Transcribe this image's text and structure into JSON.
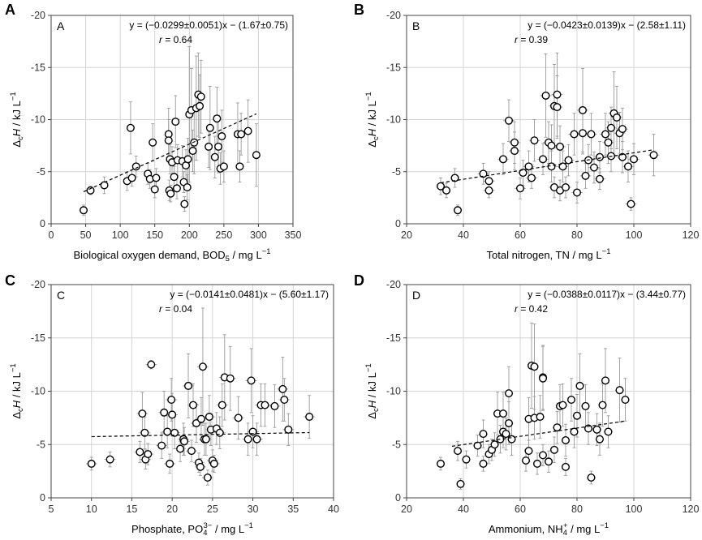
{
  "figure": {
    "y_axis_label": {
      "main": "Δ",
      "sub": "c",
      "italic": "H",
      "units": " / kJ L",
      "sup": "−1"
    }
  },
  "chart_data": [
    {
      "type": "scatter",
      "panel_letter": "A",
      "inner_label": "A",
      "equation": "y = (−0.0299±0.0051)x − (1.67±0.75)",
      "r_label": "r",
      "r_value": " = 0.64",
      "xlabel": {
        "text": "Biological oxygen demand, BOD",
        "sub": "5",
        "sup": "",
        "units": " / mg L",
        "units_sup": "−1"
      },
      "xlim": [
        0,
        350
      ],
      "xticks": [
        0,
        50,
        100,
        150,
        200,
        250,
        300,
        350
      ],
      "ylim": [
        0,
        -20
      ],
      "yticks": [
        0,
        -5,
        -10,
        -15,
        -20
      ],
      "ytick_labels": [
        "0",
        "-5",
        "-10",
        "-15",
        "-20"
      ],
      "fit": {
        "slope": -0.0299,
        "intercept": -1.67,
        "x_range": [
          47,
          297
        ]
      },
      "points": [
        [
          47,
          -1.3,
          0.5,
          4
        ],
        [
          57,
          -3.2,
          0.4,
          4
        ],
        [
          77,
          -3.7,
          0.8,
          4
        ],
        [
          110,
          -4.1,
          0.9,
          4
        ],
        [
          115,
          -9.2,
          2.5,
          4
        ],
        [
          117,
          -4.4,
          0.8,
          4
        ],
        [
          123,
          -5.5,
          1.0,
          4
        ],
        [
          140,
          -4.8,
          1.0,
          4
        ],
        [
          143,
          -4.3,
          0.9,
          4
        ],
        [
          147,
          -7.8,
          1.8,
          4
        ],
        [
          150,
          -3.3,
          0.8,
          4
        ],
        [
          152,
          -4.4,
          0.9,
          4
        ],
        [
          170,
          -8.6,
          2.5,
          4
        ],
        [
          170,
          -8.0,
          2.0,
          4
        ],
        [
          171,
          -3.2,
          1.0,
          4
        ],
        [
          172,
          -6.2,
          1.4,
          4
        ],
        [
          173,
          -2.9,
          0.8,
          4
        ],
        [
          175,
          -5.9,
          1.5,
          4
        ],
        [
          178,
          -4.5,
          1.0,
          4
        ],
        [
          180,
          -9.8,
          2.5,
          4
        ],
        [
          182,
          -3.4,
          1.0,
          4
        ],
        [
          183,
          -6.1,
          1.5,
          4
        ],
        [
          190,
          -6.0,
          1.5,
          4
        ],
        [
          192,
          -4.0,
          1.0,
          4
        ],
        [
          193,
          -1.9,
          0.7,
          4
        ],
        [
          195,
          -5.6,
          1.5,
          4
        ],
        [
          197,
          -3.5,
          1.2,
          4
        ],
        [
          198,
          -6.2,
          2.0,
          4
        ],
        [
          200,
          -10.5,
          6.5,
          4
        ],
        [
          203,
          -10.9,
          4.0,
          4
        ],
        [
          205,
          -7.0,
          2.0,
          4
        ],
        [
          207,
          -7.8,
          3.0,
          4
        ],
        [
          210,
          -11.1,
          5.0,
          4
        ],
        [
          213,
          -12.4,
          4.0,
          4
        ],
        [
          215,
          -11.3,
          3.0,
          4
        ],
        [
          217,
          -12.2,
          3.5,
          4
        ],
        [
          230,
          -9.2,
          4.0,
          4
        ],
        [
          237,
          -6.4,
          2.0,
          4
        ],
        [
          240,
          -10.1,
          3.0,
          4
        ],
        [
          242,
          -7.4,
          2.5,
          4
        ],
        [
          245,
          -5.3,
          1.5,
          4
        ],
        [
          247,
          -8.4,
          2.5,
          4
        ],
        [
          250,
          -5.5,
          1.5,
          4
        ],
        [
          270,
          -8.6,
          3.0,
          4
        ],
        [
          273,
          -5.5,
          1.5,
          4
        ],
        [
          275,
          -8.6,
          2.0,
          4
        ],
        [
          285,
          -8.9,
          3.0,
          4
        ],
        [
          297,
          -6.6,
          3.0,
          4
        ],
        [
          228,
          -7.4,
          2.0,
          4
        ]
      ]
    },
    {
      "type": "scatter",
      "panel_letter": "B",
      "inner_label": "B",
      "equation": "y = (−0.0423±0.0139)x − (2.58±1.11)",
      "r_label": "r",
      "r_value": " = 0.39",
      "xlabel": {
        "text": "Total nitrogen, TN",
        "sub": "",
        "sup": "",
        "units": " / mg L",
        "units_sup": "−1"
      },
      "xlim": [
        20,
        120
      ],
      "xticks": [
        20,
        40,
        60,
        80,
        100,
        120
      ],
      "ylim": [
        0,
        -20
      ],
      "yticks": [
        0,
        -5,
        -10,
        -15,
        -20
      ],
      "ytick_labels": [
        "0",
        "-5",
        "-10",
        "-15",
        "-20"
      ],
      "fit": {
        "slope": -0.0423,
        "intercept": -2.58,
        "x_range": [
          32,
          107
        ]
      },
      "points": [
        [
          32,
          -3.6,
          0.8,
          1.5
        ],
        [
          34,
          -3.2,
          0.7,
          1.5
        ],
        [
          37,
          -4.4,
          0.9,
          1.5
        ],
        [
          38,
          -1.3,
          0.5,
          1.5
        ],
        [
          47,
          -4.8,
          1.0,
          2
        ],
        [
          49,
          -4.1,
          0.9,
          2
        ],
        [
          49,
          -3.2,
          0.7,
          2
        ],
        [
          54,
          -6.2,
          1.5,
          2
        ],
        [
          56,
          -9.9,
          2.0,
          2
        ],
        [
          58,
          -7.8,
          2.0,
          2
        ],
        [
          58,
          -7.0,
          1.8,
          2
        ],
        [
          60,
          -3.4,
          1.0,
          2
        ],
        [
          61,
          -4.9,
          1.2,
          2
        ],
        [
          63,
          -5.5,
          1.5,
          2
        ],
        [
          64,
          -4.4,
          1.0,
          2
        ],
        [
          65,
          -8.0,
          2.0,
          2
        ],
        [
          68,
          -6.2,
          1.5,
          2
        ],
        [
          69,
          -12.3,
          4.0,
          2
        ],
        [
          70,
          -7.8,
          2.0,
          2
        ],
        [
          71,
          -7.5,
          2.0,
          2
        ],
        [
          71,
          -5.5,
          1.5,
          2
        ],
        [
          72,
          -11.3,
          4.0,
          2
        ],
        [
          72,
          -3.5,
          1.0,
          2
        ],
        [
          73,
          -12.4,
          4.0,
          2
        ],
        [
          73,
          -11.2,
          3.0,
          2
        ],
        [
          74,
          -7.4,
          2.0,
          2
        ],
        [
          74,
          -3.2,
          1.0,
          2
        ],
        [
          75,
          -5.5,
          1.5,
          2
        ],
        [
          76,
          -3.5,
          1.0,
          2
        ],
        [
          77,
          -6.1,
          1.5,
          2
        ],
        [
          79,
          -8.6,
          2.0,
          2
        ],
        [
          80,
          -3.0,
          1.0,
          2
        ],
        [
          82,
          -8.7,
          2.0,
          2
        ],
        [
          82,
          -10.9,
          4.0,
          2
        ],
        [
          83,
          -4.6,
          1.2,
          2
        ],
        [
          84,
          -6.1,
          1.5,
          2
        ],
        [
          85,
          -8.6,
          2.0,
          2
        ],
        [
          86,
          -5.4,
          1.5,
          2
        ],
        [
          88,
          -6.4,
          1.5,
          2
        ],
        [
          88,
          -4.3,
          1.0,
          2
        ],
        [
          90,
          -8.6,
          2.0,
          2
        ],
        [
          91,
          -7.8,
          2.0,
          2
        ],
        [
          92,
          -9.2,
          2.0,
          2
        ],
        [
          92,
          -6.5,
          1.5,
          2
        ],
        [
          93,
          -10.6,
          4.0,
          2
        ],
        [
          94,
          -10.2,
          3.0,
          2
        ],
        [
          95,
          -8.7,
          2.0,
          2
        ],
        [
          96,
          -9.1,
          2.0,
          2
        ],
        [
          96,
          -6.4,
          1.5,
          2
        ],
        [
          98,
          -5.5,
          1.5,
          2
        ],
        [
          99,
          -1.9,
          0.6,
          2
        ],
        [
          100,
          -6.2,
          1.5,
          2
        ],
        [
          107,
          -6.6,
          2.0,
          2
        ]
      ]
    },
    {
      "type": "scatter",
      "panel_letter": "C",
      "inner_label": "C",
      "equation": "y = (−0.0141±0.0481)x − (5.60±1.17)",
      "r_label": "r",
      "r_value": " = 0.04",
      "xlabel": {
        "text": "Phosphate, PO",
        "sub": "4",
        "sup": "3−",
        "units": " / mg L",
        "units_sup": "−1"
      },
      "xlim": [
        5,
        40
      ],
      "xticks": [
        5,
        10,
        15,
        20,
        25,
        30,
        35,
        40
      ],
      "ylim": [
        0,
        -20
      ],
      "yticks": [
        0,
        -5,
        -10,
        -15,
        -20
      ],
      "ytick_labels": [
        "0",
        "-5",
        "-10",
        "-15",
        "-20"
      ],
      "fit": {
        "slope": -0.0141,
        "intercept": -5.6,
        "x_range": [
          10,
          37
        ]
      },
      "points": [
        [
          10,
          -3.2,
          0.6,
          0.7
        ],
        [
          12.3,
          -3.6,
          0.7,
          0.7
        ],
        [
          16,
          -4.3,
          1.0,
          0.7
        ],
        [
          16.3,
          -7.9,
          2.0,
          0.7
        ],
        [
          16.6,
          -6.1,
          1.5,
          0.7
        ],
        [
          16.7,
          -3.6,
          0.9,
          0.7
        ],
        [
          17,
          -4.1,
          1.0,
          0.7
        ],
        [
          17.4,
          -12.5,
          0.4,
          0.7
        ],
        [
          18.7,
          -4.9,
          1.2,
          0.7
        ],
        [
          19,
          -8.0,
          2.0,
          0.7
        ],
        [
          19.4,
          -6.2,
          1.5,
          0.7
        ],
        [
          19.7,
          -3.2,
          0.9,
          0.7
        ],
        [
          19.9,
          -9.2,
          2.0,
          0.7
        ],
        [
          20,
          -7.8,
          2.0,
          0.7
        ],
        [
          20.3,
          -6.1,
          1.5,
          0.7
        ],
        [
          21,
          -4.6,
          1.2,
          0.7
        ],
        [
          21.4,
          -5.5,
          1.5,
          0.7
        ],
        [
          21.5,
          -5.3,
          1.3,
          0.7
        ],
        [
          22,
          -10.5,
          3.0,
          0.7
        ],
        [
          22.4,
          -4.4,
          1.0,
          0.7
        ],
        [
          22.6,
          -8.7,
          2.0,
          0.7
        ],
        [
          23,
          -7.0,
          1.8,
          0.7
        ],
        [
          23.3,
          -3.3,
          0.9,
          0.7
        ],
        [
          23.5,
          -2.9,
          0.8,
          0.7
        ],
        [
          23.6,
          -7.4,
          2.0,
          0.7
        ],
        [
          23.8,
          -12.3,
          5.5,
          0.7
        ],
        [
          24,
          -5.5,
          1.5,
          0.7
        ],
        [
          24.2,
          -5.5,
          1.5,
          0.7
        ],
        [
          24.4,
          -1.9,
          0.7,
          0.7
        ],
        [
          24.6,
          -7.6,
          2.0,
          0.7
        ],
        [
          24.8,
          -6.4,
          1.5,
          0.7
        ],
        [
          25,
          -3.5,
          1.0,
          0.7
        ],
        [
          25.2,
          -3.2,
          0.8,
          0.7
        ],
        [
          25.5,
          -6.5,
          1.5,
          0.7
        ],
        [
          25.9,
          -6.1,
          1.5,
          0.7
        ],
        [
          26.2,
          -8.7,
          2.0,
          0.7
        ],
        [
          26.5,
          -11.3,
          4.0,
          0.7
        ],
        [
          27.2,
          -11.2,
          3.0,
          0.7
        ],
        [
          28.2,
          -7.5,
          2.0,
          0.7
        ],
        [
          29.4,
          -5.5,
          1.5,
          0.7
        ],
        [
          29.8,
          -11.0,
          3.0,
          0.7
        ],
        [
          30,
          -6.2,
          1.5,
          0.7
        ],
        [
          30.5,
          -5.5,
          1.5,
          0.7
        ],
        [
          31,
          -8.7,
          2.0,
          0.7
        ],
        [
          31.5,
          -8.7,
          2.0,
          0.7
        ],
        [
          32.7,
          -8.6,
          2.0,
          0.7
        ],
        [
          33.7,
          -10.2,
          3.0,
          0.7
        ],
        [
          33.9,
          -9.2,
          2.0,
          0.7
        ],
        [
          34.4,
          -6.4,
          1.5,
          0.7
        ],
        [
          37,
          -7.6,
          2.0,
          0.7
        ]
      ]
    },
    {
      "type": "scatter",
      "panel_letter": "D",
      "inner_label": "D",
      "equation": "y = (−0.0388±0.0117)x − (3.44±0.77)",
      "r_label": "r",
      "r_value": " = 0.42",
      "xlabel": {
        "text": "Ammonium, NH",
        "sub": "4",
        "sup": "+",
        "units": " / mg L",
        "units_sup": "−1"
      },
      "xlim": [
        20,
        120
      ],
      "xticks": [
        20,
        40,
        60,
        80,
        100,
        120
      ],
      "ylim": [
        0,
        -20
      ],
      "yticks": [
        0,
        -5,
        -10,
        -15,
        -20
      ],
      "ytick_labels": [
        "0",
        "-5",
        "-10",
        "-15",
        "-20"
      ],
      "fit": {
        "slope": -0.0388,
        "intercept": -3.44,
        "x_range": [
          36,
          97
        ]
      },
      "points": [
        [
          32,
          -3.2,
          0.6,
          1.5
        ],
        [
          38,
          -4.4,
          0.9,
          1.5
        ],
        [
          39,
          -1.3,
          0.5,
          1.5
        ],
        [
          41,
          -3.6,
          0.8,
          1.5
        ],
        [
          45,
          -4.9,
          1.0,
          1.5
        ],
        [
          47,
          -6.0,
          1.3,
          1.5
        ],
        [
          47,
          -3.2,
          0.7,
          1.5
        ],
        [
          49,
          -4.1,
          0.9,
          1.5
        ],
        [
          50,
          -4.5,
          1.0,
          1.5
        ],
        [
          51,
          -5.0,
          1.1,
          1.5
        ],
        [
          52,
          -7.9,
          2.0,
          1.5
        ],
        [
          53,
          -5.5,
          1.3,
          1.5
        ],
        [
          54,
          -7.9,
          2.0,
          1.5
        ],
        [
          54,
          -6.2,
          1.5,
          1.5
        ],
        [
          55,
          -6.0,
          1.5,
          1.5
        ],
        [
          56,
          -9.8,
          2.5,
          1.5
        ],
        [
          56,
          -7.0,
          2.0,
          1.5
        ],
        [
          57,
          -5.5,
          1.5,
          1.5
        ],
        [
          62,
          -3.5,
          1.0,
          1.5
        ],
        [
          63,
          -4.4,
          1.0,
          1.5
        ],
        [
          63,
          -7.4,
          2.0,
          1.5
        ],
        [
          64,
          -12.4,
          4.0,
          1.5
        ],
        [
          65,
          -12.3,
          4.0,
          1.5
        ],
        [
          65,
          -7.5,
          2.0,
          1.5
        ],
        [
          66,
          -3.2,
          1.0,
          1.5
        ],
        [
          67,
          -7.6,
          2.0,
          1.5
        ],
        [
          68,
          -11.3,
          3.0,
          1.5
        ],
        [
          68,
          -11.2,
          3.0,
          1.5
        ],
        [
          68,
          -4.0,
          1.0,
          1.5
        ],
        [
          70,
          -3.4,
          1.0,
          1.5
        ],
        [
          72,
          -4.5,
          1.2,
          1.5
        ],
        [
          73,
          -6.6,
          1.5,
          1.5
        ],
        [
          74,
          -8.6,
          2.0,
          1.5
        ],
        [
          75,
          -8.7,
          2.0,
          1.5
        ],
        [
          76,
          -2.9,
          0.8,
          1.5
        ],
        [
          76,
          -5.4,
          1.5,
          1.5
        ],
        [
          78,
          -9.2,
          2.0,
          1.5
        ],
        [
          79,
          -6.2,
          1.5,
          1.5
        ],
        [
          80,
          -7.7,
          2.0,
          1.5
        ],
        [
          81,
          -10.5,
          3.0,
          1.5
        ],
        [
          83,
          -8.6,
          2.0,
          1.5
        ],
        [
          84,
          -6.5,
          1.5,
          1.5
        ],
        [
          85,
          -1.9,
          0.6,
          1.5
        ],
        [
          87,
          -6.4,
          1.5,
          1.5
        ],
        [
          88,
          -5.5,
          1.5,
          1.5
        ],
        [
          89,
          -8.7,
          2.0,
          1.5
        ],
        [
          90,
          -11.0,
          3.0,
          1.5
        ],
        [
          91,
          -6.2,
          1.5,
          1.5
        ],
        [
          95,
          -10.1,
          3.0,
          1.5
        ],
        [
          97,
          -9.2,
          2.0,
          1.5
        ]
      ]
    }
  ]
}
